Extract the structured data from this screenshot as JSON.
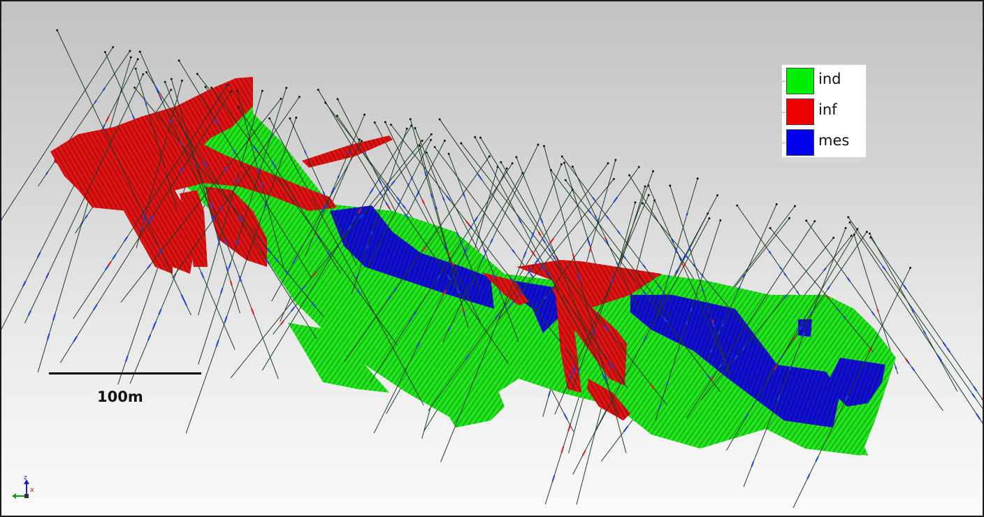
{
  "legend": {
    "items": [
      {
        "label": "ind",
        "color": "#00ee00"
      },
      {
        "label": "inf",
        "color": "#ee0000"
      },
      {
        "label": "mes",
        "color": "#0000ee"
      }
    ]
  },
  "scale_bar": {
    "label": "100m"
  },
  "axis_triad": {
    "z_label": "z",
    "x_label": "x"
  },
  "colors": {
    "ore_green": "#22e61e",
    "ore_red": "#e01414",
    "ore_blue": "#1212d6",
    "drill_trace": "#1f3b26",
    "drill_sample": "#1f3fd8"
  }
}
